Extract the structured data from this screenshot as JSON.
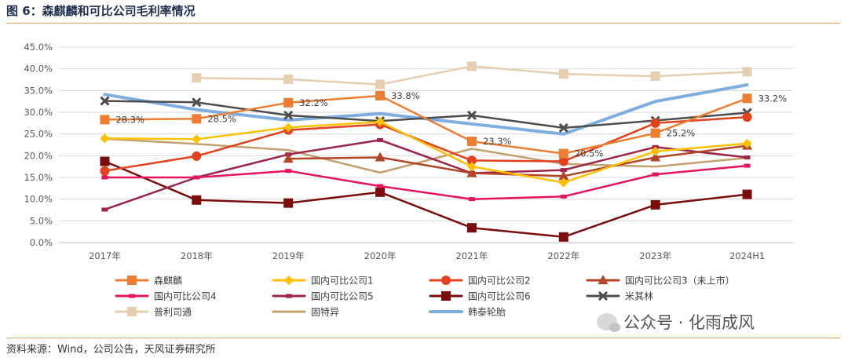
{
  "header": {
    "title": "图 6：森麒麟和可比公司毛利率情况"
  },
  "footer": {
    "source": "资料来源：Wind，公司公告，天风证券研究所"
  },
  "watermark": {
    "text": "公众号 · 化雨成风",
    "icon": "wechat-icon"
  },
  "chart_data": {
    "type": "line",
    "categories": [
      "2017年",
      "2018年",
      "2019年",
      "2020年",
      "2021年",
      "2022年",
      "2023年",
      "2024H1"
    ],
    "ylim": [
      0,
      45
    ],
    "ytick_step": 5,
    "ytick_format": "percent_1dp",
    "grid": true,
    "legend_position": "bottom",
    "series": [
      {
        "name": "森麒麟",
        "color": "#ED7D31",
        "marker": "square",
        "width": 2.5,
        "values": [
          28.3,
          28.5,
          32.2,
          33.8,
          23.3,
          20.5,
          25.2,
          33.2
        ]
      },
      {
        "name": "国内可比公司1",
        "color": "#FFC000",
        "marker": "diamond",
        "width": 2.5,
        "values": [
          24.0,
          23.8,
          26.5,
          27.8,
          17.5,
          13.8,
          21.0,
          22.8
        ]
      },
      {
        "name": "国内可比公司2",
        "color": "#E3401D",
        "marker": "circle",
        "width": 2.5,
        "values": [
          16.5,
          19.9,
          25.9,
          27.2,
          18.9,
          18.7,
          27.5,
          28.9
        ]
      },
      {
        "name": "国内可比公司3（未上市）",
        "color": "#B34527",
        "marker": "triangle",
        "width": 2.5,
        "values": [
          null,
          null,
          19.3,
          19.6,
          16.0,
          15.3,
          19.6,
          22.3
        ]
      },
      {
        "name": "国内可比公司4",
        "color": "#E6145A",
        "marker": "dash",
        "width": 2.5,
        "values": [
          15.0,
          15.0,
          16.5,
          13.0,
          10.0,
          10.6,
          15.7,
          17.7
        ]
      },
      {
        "name": "国内可比公司5",
        "color": "#9E2448",
        "marker": "dash",
        "width": 2.5,
        "values": [
          7.6,
          15.0,
          20.3,
          23.6,
          16.0,
          16.7,
          22.0,
          19.6
        ]
      },
      {
        "name": "国内可比公司6",
        "color": "#7B0C0C",
        "marker": "square",
        "width": 2.5,
        "values": [
          18.7,
          9.8,
          9.1,
          11.6,
          3.4,
          1.3,
          8.7,
          11.1
        ]
      },
      {
        "name": "米其林",
        "color": "#4D4D4D",
        "marker": "x",
        "width": 2.5,
        "values": [
          32.6,
          32.3,
          29.3,
          28.0,
          29.3,
          26.4,
          28.1,
          29.9
        ]
      },
      {
        "name": "普利司通",
        "color": "#E5CFB0",
        "marker": "square",
        "width": 2.5,
        "values": [
          null,
          37.9,
          37.6,
          36.4,
          40.6,
          38.8,
          38.3,
          39.3
        ]
      },
      {
        "name": "固特异",
        "color": "#C4A070",
        "marker": "none",
        "width": 2.5,
        "values": [
          23.9,
          22.7,
          21.3,
          16.1,
          21.6,
          18.1,
          17.5,
          19.5
        ]
      },
      {
        "name": "韩泰轮胎",
        "color": "#7EAEE0",
        "marker": "none",
        "width": 4,
        "values": [
          34.1,
          30.6,
          28.2,
          29.7,
          27.3,
          25.0,
          32.5,
          36.3
        ]
      }
    ],
    "data_labels": [
      {
        "series": 0,
        "index": 0,
        "text": "28.3%"
      },
      {
        "series": 0,
        "index": 1,
        "text": "28.5%"
      },
      {
        "series": 0,
        "index": 2,
        "text": "32.2%"
      },
      {
        "series": 0,
        "index": 3,
        "text": "33.8%"
      },
      {
        "series": 0,
        "index": 4,
        "text": "23.3%"
      },
      {
        "series": 0,
        "index": 5,
        "text": "20.5%"
      },
      {
        "series": 0,
        "index": 6,
        "text": "25.2%"
      },
      {
        "series": 0,
        "index": 7,
        "text": "33.2%"
      }
    ]
  }
}
